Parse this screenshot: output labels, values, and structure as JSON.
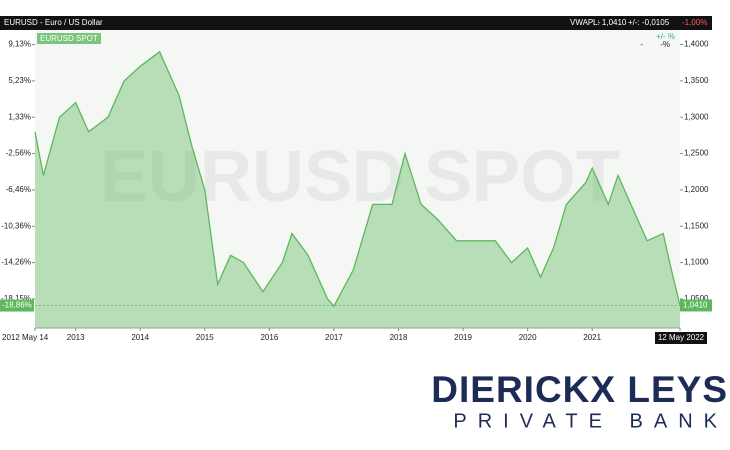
{
  "chart_data": {
    "type": "area",
    "title": "EURUSD - Euro / US Dollar",
    "header": {
      "vwap": "VWAP: -",
      "last": "L: 1,0410",
      "change": "+/-: -0,0105",
      "change_pct": "-1,00%"
    },
    "legend_info": [
      "+/- %",
      "-",
      "-%"
    ],
    "x": [
      2012.37,
      2012.5,
      2012.75,
      2013.0,
      2013.2,
      2013.5,
      2013.75,
      2014.0,
      2014.3,
      2014.45,
      2014.6,
      2014.8,
      2015.0,
      2015.2,
      2015.4,
      2015.6,
      2015.9,
      2016.2,
      2016.35,
      2016.6,
      2016.9,
      2017.0,
      2017.3,
      2017.6,
      2017.9,
      2018.1,
      2018.35,
      2018.6,
      2018.9,
      2019.2,
      2019.5,
      2019.75,
      2020.0,
      2020.2,
      2020.4,
      2020.6,
      2020.9,
      2021.0,
      2021.25,
      2021.4,
      2021.6,
      2021.85,
      2022.1,
      2022.2,
      2022.36
    ],
    "series": [
      {
        "name": "EURUSD SPOT",
        "color": "#5cb85c",
        "values": [
          1.28,
          1.22,
          1.3,
          1.32,
          1.28,
          1.3,
          1.35,
          1.37,
          1.39,
          1.36,
          1.33,
          1.26,
          1.2,
          1.07,
          1.11,
          1.1,
          1.06,
          1.1,
          1.14,
          1.11,
          1.05,
          1.04,
          1.09,
          1.18,
          1.18,
          1.25,
          1.18,
          1.16,
          1.13,
          1.13,
          1.13,
          1.1,
          1.12,
          1.08,
          1.12,
          1.18,
          1.21,
          1.23,
          1.18,
          1.22,
          1.18,
          1.13,
          1.14,
          1.1,
          1.041
        ]
      }
    ],
    "last": {
      "value": 1.041,
      "label": "1,0410",
      "change": -18.86,
      "change_label": "-18,86%"
    },
    "xlim": [
      2012.37,
      2022.36
    ],
    "xticks": [
      {
        "value": 2012.37,
        "label": "2012 May 14"
      },
      2013,
      2014,
      2015,
      2016,
      2017,
      2018,
      2019,
      2020,
      2021,
      {
        "value": 2022.36,
        "label": "12 May 2022"
      }
    ],
    "ylim": [
      1.01,
      1.42
    ],
    "yticks": [
      {
        "value": 1.05,
        "label": "1,0500"
      },
      {
        "value": 1.1,
        "label": "1,1000"
      },
      {
        "value": 1.15,
        "label": "1,1500"
      },
      {
        "value": 1.2,
        "label": "1,2000"
      },
      {
        "value": 1.25,
        "label": "1,2500"
      },
      {
        "value": 1.3,
        "label": "1,3000"
      },
      {
        "value": 1.35,
        "label": "1,3500"
      },
      {
        "value": 1.4,
        "label": "1,4000"
      }
    ],
    "y2lim": [
      -21.27,
      10.69
    ],
    "y2ticks": [
      {
        "value": -18.15,
        "label": "-18,15%"
      },
      {
        "value": -14.26,
        "label": "-14,26%"
      },
      {
        "value": -10.36,
        "label": "-10,36%"
      },
      {
        "value": -6.46,
        "label": "-6,46%"
      },
      {
        "value": -2.56,
        "label": "-2,56%"
      },
      {
        "value": 1.33,
        "label": "1,33%"
      },
      {
        "value": 5.23,
        "label": "5,23%"
      },
      {
        "value": 9.13,
        "label": "9,13%"
      }
    ]
  },
  "brand": {
    "name": "DIERICKX LEYS",
    "tagline": "PRIVATE BANK"
  }
}
